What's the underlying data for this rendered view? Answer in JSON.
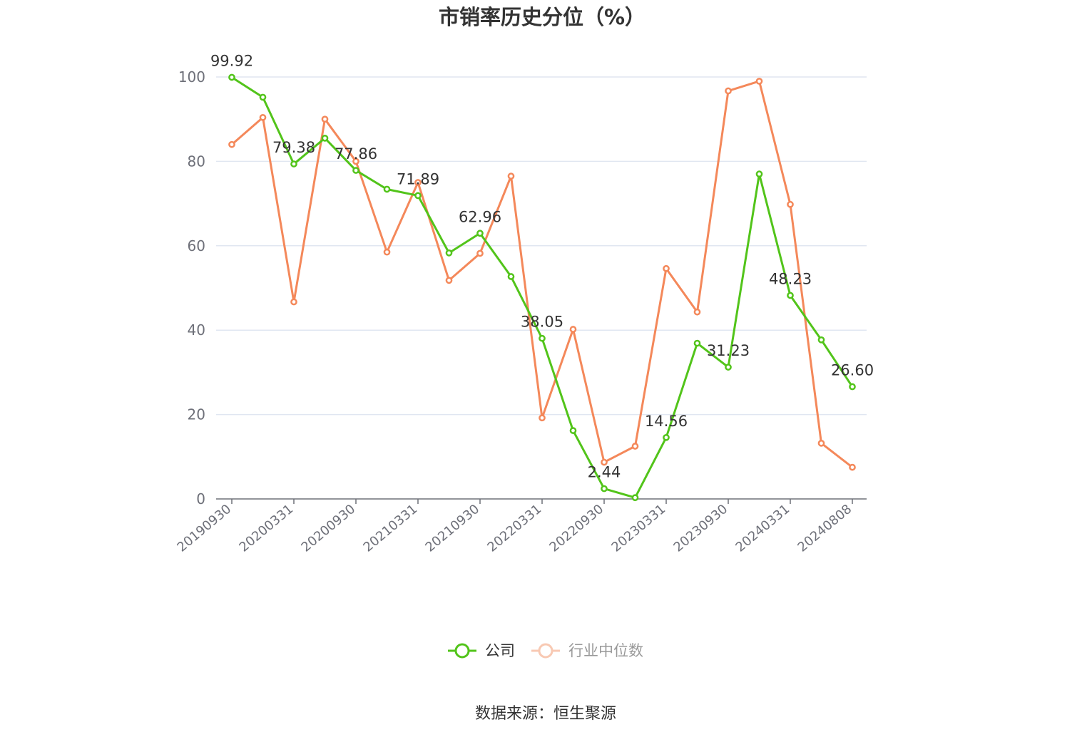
{
  "chart_data": {
    "type": "line",
    "title": "市销率历史分位（%）",
    "ylim": [
      0,
      100
    ],
    "yticks": [
      0,
      20,
      40,
      60,
      80,
      100
    ],
    "x": [
      "20190930",
      "20191231",
      "20200331",
      "20200630",
      "20200930",
      "20201231",
      "20210331",
      "20210630",
      "20210930",
      "20211231",
      "20220331",
      "20220630",
      "20220930",
      "20221231",
      "20230331",
      "20230630",
      "20230930",
      "20231231",
      "20240331",
      "20240630",
      "20240808"
    ],
    "xtick_labels": [
      "20190930",
      "20200331",
      "20200930",
      "20210331",
      "20210930",
      "20220331",
      "20220930",
      "20230331",
      "20230930",
      "20240331",
      "20240808"
    ],
    "series": [
      {
        "name": "公司",
        "color": "#52c41a",
        "values": [
          99.92,
          95.2,
          79.38,
          85.5,
          77.86,
          73.4,
          71.89,
          58.3,
          62.96,
          52.7,
          38.05,
          16.2,
          2.44,
          0.3,
          14.56,
          36.9,
          31.23,
          77.0,
          48.23,
          37.7,
          26.6
        ],
        "labels": {
          "0": "99.92",
          "2": "79.38",
          "4": "77.86",
          "6": "71.89",
          "8": "62.96",
          "10": "38.05",
          "12": "2.44",
          "14": "14.56",
          "16": "31.23",
          "18": "48.23",
          "20": "26.60"
        }
      },
      {
        "name": "行业中位数",
        "color": "#f4885a",
        "values": [
          84.0,
          90.4,
          46.7,
          90.0,
          80.0,
          58.5,
          75.0,
          51.8,
          58.2,
          76.5,
          19.2,
          40.2,
          8.7,
          12.5,
          54.6,
          44.3,
          96.7,
          99.0,
          69.8,
          13.2,
          7.5
        ]
      }
    ],
    "grid": true,
    "legend_position": "bottom-center"
  },
  "legend": [
    {
      "label": "公司",
      "active": true
    },
    {
      "label": "行业中位数",
      "active": false
    }
  ],
  "source": "数据来源：恒生聚源"
}
